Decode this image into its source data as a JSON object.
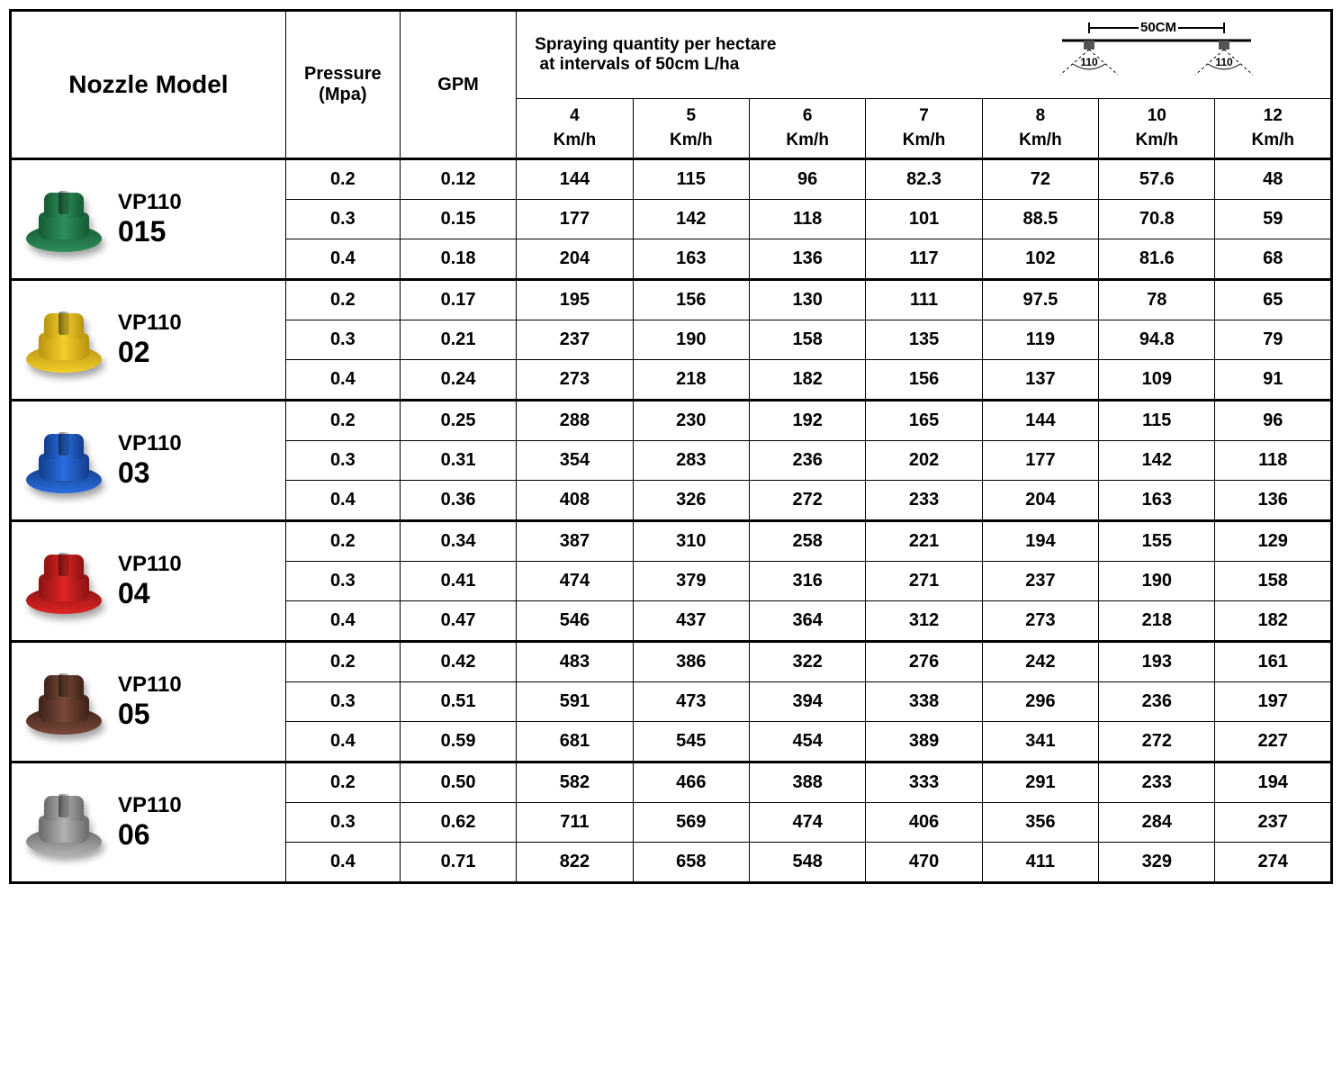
{
  "header": {
    "title": "Nozzle Model",
    "pressure": "Pressure (Mpa)",
    "gpm": "GPM",
    "spray_title": "Spraying quantity per hectare\n at intervals of 50cm L/ha",
    "diagram": {
      "distance_label": "50CM",
      "angle_label": "110"
    },
    "speeds": [
      "4",
      "5",
      "6",
      "7",
      "8",
      "10",
      "12"
    ],
    "speed_unit": "Km/h"
  },
  "styling": {
    "border_color": "#000000",
    "background_color": "#ffffff",
    "text_color": "#000000",
    "font_family": "Arial",
    "title_fontsize": 28,
    "header_fontsize": 20,
    "data_fontsize": 20,
    "model_line1_fontsize": 24,
    "model_line2_fontsize": 32,
    "col_widths": {
      "model": 260,
      "pressure": 108,
      "gpm": 110,
      "speed": 110
    },
    "outer_border_width": 3,
    "inner_border_width": 1.5
  },
  "models": [
    {
      "name_line1": "VP110",
      "name_line2": "015",
      "color_main": "#2e8f5a",
      "color_dark": "#145a32",
      "rows": [
        {
          "pressure": "0.2",
          "gpm": "0.12",
          "v": [
            "144",
            "115",
            "96",
            "82.3",
            "72",
            "57.6",
            "48"
          ]
        },
        {
          "pressure": "0.3",
          "gpm": "0.15",
          "v": [
            "177",
            "142",
            "118",
            "101",
            "88.5",
            "70.8",
            "59"
          ]
        },
        {
          "pressure": "0.4",
          "gpm": "0.18",
          "v": [
            "204",
            "163",
            "136",
            "117",
            "102",
            "81.6",
            "68"
          ]
        }
      ]
    },
    {
      "name_line1": "VP110",
      "name_line2": "02",
      "color_main": "#f3ce2b",
      "color_dark": "#b8930f",
      "rows": [
        {
          "pressure": "0.2",
          "gpm": "0.17",
          "v": [
            "195",
            "156",
            "130",
            "111",
            "97.5",
            "78",
            "65"
          ]
        },
        {
          "pressure": "0.3",
          "gpm": "0.21",
          "v": [
            "237",
            "190",
            "158",
            "135",
            "119",
            "94.8",
            "79"
          ]
        },
        {
          "pressure": "0.4",
          "gpm": "0.24",
          "v": [
            "273",
            "218",
            "182",
            "156",
            "137",
            "109",
            "91"
          ]
        }
      ]
    },
    {
      "name_line1": "VP110",
      "name_line2": "03",
      "color_main": "#2a6ee0",
      "color_dark": "#123d8a",
      "rows": [
        {
          "pressure": "0.2",
          "gpm": "0.25",
          "v": [
            "288",
            "230",
            "192",
            "165",
            "144",
            "115",
            "96"
          ]
        },
        {
          "pressure": "0.3",
          "gpm": "0.31",
          "v": [
            "354",
            "283",
            "236",
            "202",
            "177",
            "142",
            "118"
          ]
        },
        {
          "pressure": "0.4",
          "gpm": "0.36",
          "v": [
            "408",
            "326",
            "272",
            "233",
            "204",
            "163",
            "136"
          ]
        }
      ]
    },
    {
      "name_line1": "VP110",
      "name_line2": "04",
      "color_main": "#e02424",
      "color_dark": "#8a1212",
      "rows": [
        {
          "pressure": "0.2",
          "gpm": "0.34",
          "v": [
            "387",
            "310",
            "258",
            "221",
            "194",
            "155",
            "129"
          ]
        },
        {
          "pressure": "0.3",
          "gpm": "0.41",
          "v": [
            "474",
            "379",
            "316",
            "271",
            "237",
            "190",
            "158"
          ]
        },
        {
          "pressure": "0.4",
          "gpm": "0.47",
          "v": [
            "546",
            "437",
            "364",
            "312",
            "273",
            "218",
            "182"
          ]
        }
      ]
    },
    {
      "name_line1": "VP110",
      "name_line2": "05",
      "color_main": "#7a4a3a",
      "color_dark": "#3f2218",
      "rows": [
        {
          "pressure": "0.2",
          "gpm": "0.42",
          "v": [
            "483",
            "386",
            "322",
            "276",
            "242",
            "193",
            "161"
          ]
        },
        {
          "pressure": "0.3",
          "gpm": "0.51",
          "v": [
            "591",
            "473",
            "394",
            "338",
            "296",
            "236",
            "197"
          ]
        },
        {
          "pressure": "0.4",
          "gpm": "0.59",
          "v": [
            "681",
            "545",
            "454",
            "389",
            "341",
            "272",
            "227"
          ]
        }
      ]
    },
    {
      "name_line1": "VP110",
      "name_line2": "06",
      "color_main": "#b0b0b0",
      "color_dark": "#6a6a6a",
      "rows": [
        {
          "pressure": "0.2",
          "gpm": "0.50",
          "v": [
            "582",
            "466",
            "388",
            "333",
            "291",
            "233",
            "194"
          ]
        },
        {
          "pressure": "0.3",
          "gpm": "0.62",
          "v": [
            "711",
            "569",
            "474",
            "406",
            "356",
            "284",
            "237"
          ]
        },
        {
          "pressure": "0.4",
          "gpm": "0.71",
          "v": [
            "822",
            "658",
            "548",
            "470",
            "411",
            "329",
            "274"
          ]
        }
      ]
    }
  ]
}
